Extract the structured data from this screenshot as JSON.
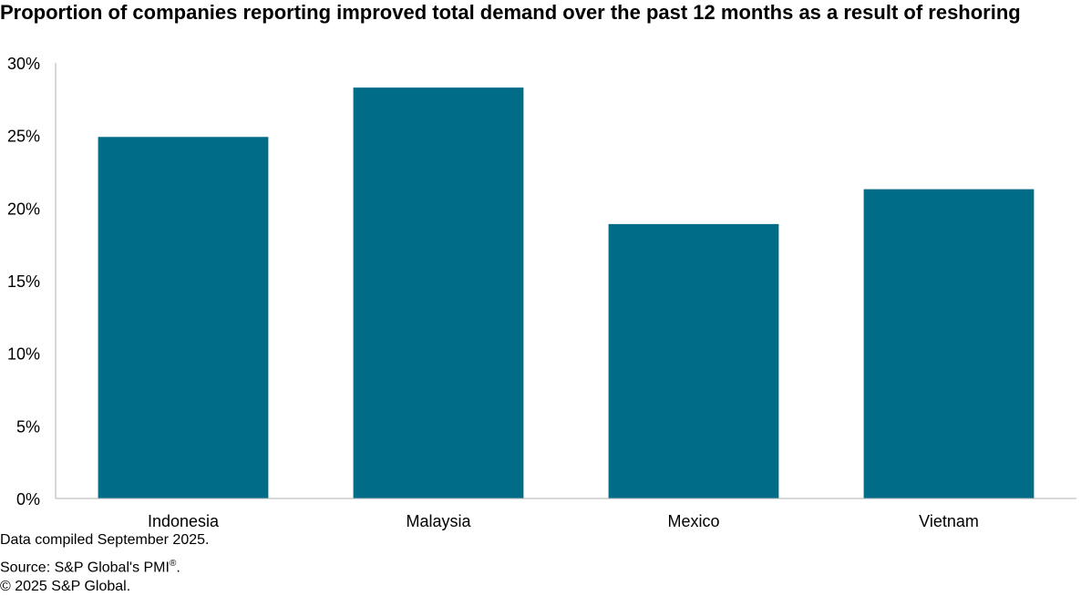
{
  "chart_data": {
    "type": "bar",
    "title": "Proportion of companies reporting improved total demand over the past 12 months as a result of reshoring",
    "categories": [
      "Indonesia",
      "Malaysia",
      "Mexico",
      "Vietnam"
    ],
    "values": [
      24.9,
      28.3,
      18.9,
      21.3
    ],
    "ylim": [
      0,
      30
    ],
    "yticks": [
      "0%",
      "5%",
      "10%",
      "15%",
      "20%",
      "25%",
      "30%"
    ],
    "bar_color": "#006C87",
    "grid": false,
    "legend": "none"
  },
  "footer": {
    "compiled": "Data compiled September 2025.",
    "source": "Source: S&P Global's PMI",
    "reg": "®",
    "period": ".",
    "copyright": "© 2025 S&P Global."
  }
}
